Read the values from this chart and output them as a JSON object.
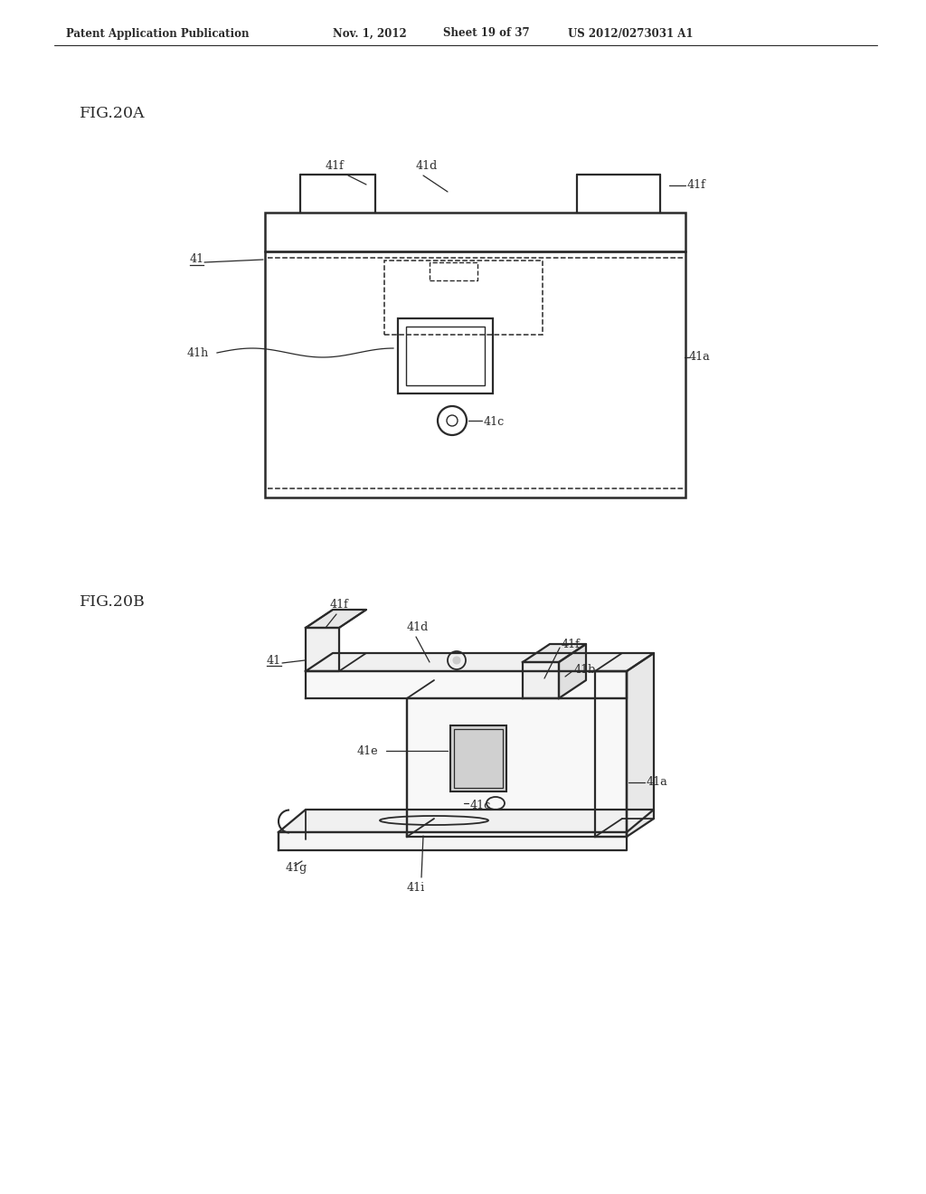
{
  "background_color": "#ffffff",
  "header_text": "Patent Application Publication",
  "header_date": "Nov. 1, 2012",
  "header_sheet": "Sheet 19 of 37",
  "header_patent": "US 2012/0273031 A1",
  "fig_label_A": "FIG.20A",
  "fig_label_B": "FIG.20B",
  "line_color": "#2a2a2a",
  "line_width": 1.6
}
